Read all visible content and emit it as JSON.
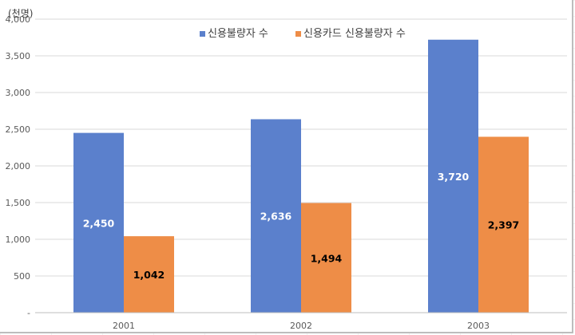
{
  "chart_data": {
    "type": "bar",
    "unit_label": "(천명)",
    "categories": [
      "2001",
      "2002",
      "2003"
    ],
    "series": [
      {
        "name": "신용불량자 수",
        "values": [
          2450,
          2636,
          3720
        ],
        "labels": [
          "2,450",
          "2,636",
          "3,720"
        ],
        "color": "#5b80cc",
        "label_color": "#ffffff"
      },
      {
        "name": "신용카드 신용불량자 수",
        "values": [
          1042,
          1494,
          2397
        ],
        "labels": [
          "1,042",
          "1,494",
          "2,397"
        ],
        "color": "#ee8d47",
        "label_color": "#000000"
      }
    ],
    "ylim": [
      0,
      4000
    ],
    "yticks": [
      0,
      500,
      1000,
      1500,
      2000,
      2500,
      3000,
      3500,
      4000
    ],
    "ytick_labels": [
      "-",
      "500",
      "1,000",
      "1,500",
      "2,000",
      "2,500",
      "3,000",
      "3,500",
      "4,000"
    ],
    "gridlines": true,
    "legend_position": "top-center"
  }
}
